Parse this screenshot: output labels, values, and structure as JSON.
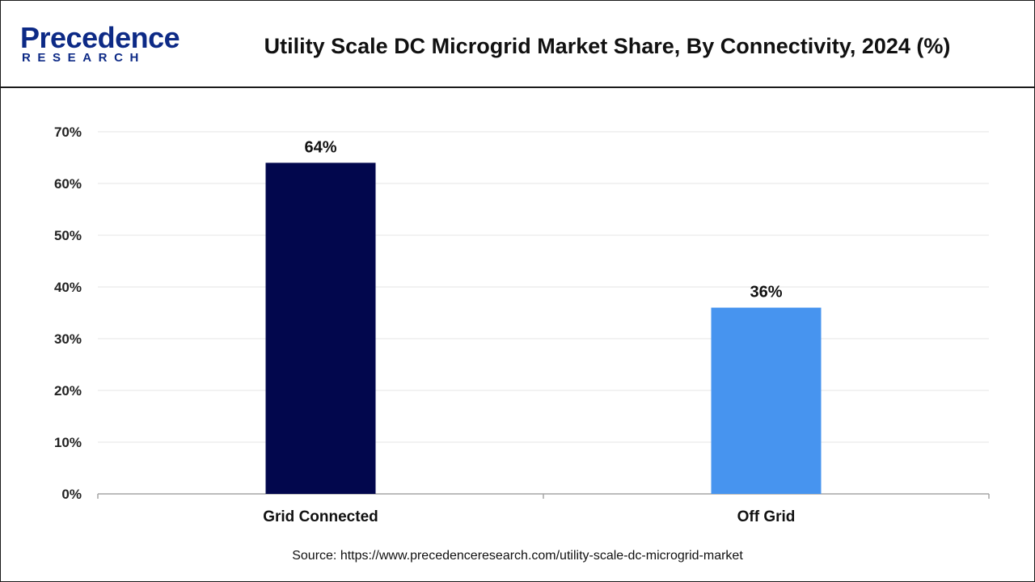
{
  "brand": {
    "name": "Precedence",
    "sub": "RESEARCH",
    "color": "#0d2a86"
  },
  "chart_data": {
    "type": "bar",
    "title": "Utility Scale DC Microgrid Market Share, By Connectivity, 2024 (%)",
    "categories": [
      "Grid Connected",
      "Off Grid"
    ],
    "values": [
      64,
      36
    ],
    "value_labels": [
      "64%",
      "36%"
    ],
    "bar_colors": [
      "#02074d",
      "#4794ef"
    ],
    "ylim": [
      0,
      70
    ],
    "yticks": [
      0,
      10,
      20,
      30,
      40,
      50,
      60,
      70
    ],
    "ytick_labels": [
      "0%",
      "10%",
      "20%",
      "30%",
      "40%",
      "50%",
      "60%",
      "70%"
    ],
    "xlabel": "",
    "ylabel": "",
    "grid": true,
    "legend": "none"
  },
  "footer": {
    "source": "Source: https://www.precedenceresearch.com/utility-scale-dc-microgrid-market"
  }
}
